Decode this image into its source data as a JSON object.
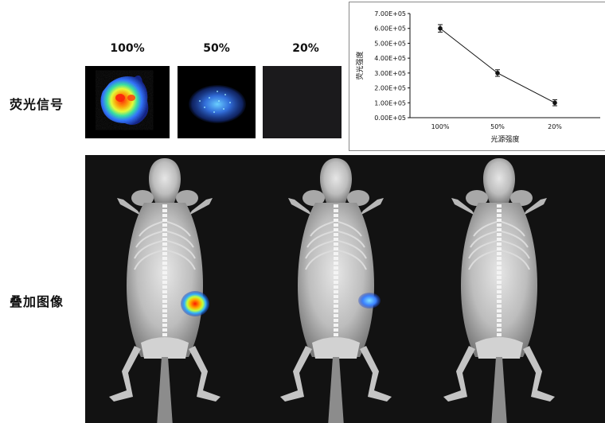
{
  "rows": {
    "fluorescence_label": "荧光信号",
    "overlay_label": "叠加图像"
  },
  "columns": [
    "100%",
    "50%",
    "20%"
  ],
  "chart_data": {
    "type": "line",
    "categories": [
      "100%",
      "50%",
      "20%"
    ],
    "values": [
      600000,
      300000,
      100000
    ],
    "errors": [
      25000,
      22000,
      20000
    ],
    "ylim": [
      0,
      700000
    ],
    "yticks": [
      "0.00E+05",
      "1.00E+05",
      "2.00E+05",
      "3.00E+05",
      "4.00E+05",
      "5.00E+05",
      "6.00E+05",
      "7.00E+05"
    ],
    "ylabel": "荧光强度",
    "xlabel": "光源强度",
    "title": "",
    "grid": false,
    "color": "#111111"
  }
}
